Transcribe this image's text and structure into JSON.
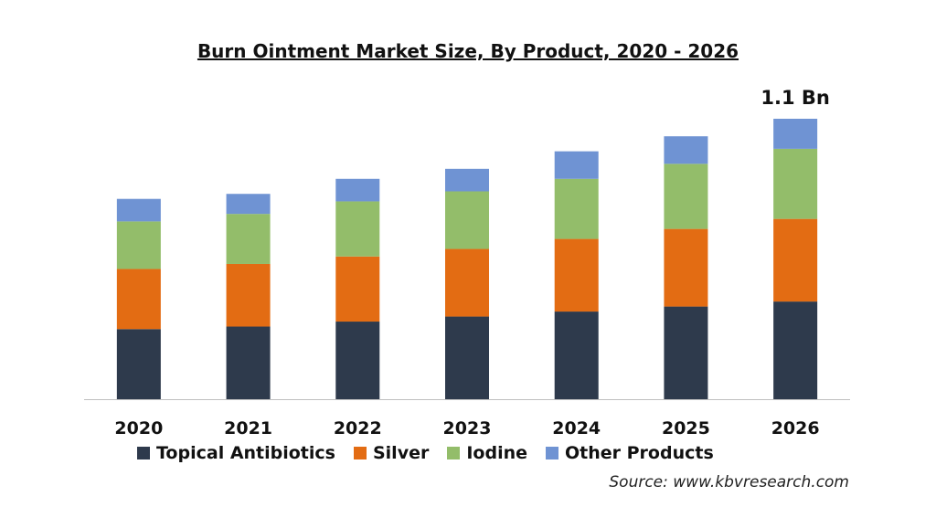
{
  "chart_data": {
    "type": "bar",
    "stacked": true,
    "title": "Burn Ointment Market Size, By Product, 2020 - 2026",
    "categories": [
      "2020",
      "2021",
      "2022",
      "2023",
      "2024",
      "2025",
      "2026"
    ],
    "series": [
      {
        "name": "Topical Antibiotics",
        "color": "#2e3a4c",
        "values": [
          0.28,
          0.29,
          0.31,
          0.33,
          0.35,
          0.37,
          0.39
        ]
      },
      {
        "name": "Silver",
        "color": "#e36c13",
        "values": [
          0.24,
          0.25,
          0.26,
          0.27,
          0.29,
          0.31,
          0.33
        ]
      },
      {
        "name": "Iodine",
        "color": "#93bd6a",
        "values": [
          0.19,
          0.2,
          0.22,
          0.23,
          0.24,
          0.26,
          0.28
        ]
      },
      {
        "name": "Other Products",
        "color": "#6f93d3",
        "values": [
          0.09,
          0.08,
          0.09,
          0.09,
          0.11,
          0.11,
          0.12
        ]
      }
    ],
    "annotations": [
      {
        "category": "2026",
        "text": "1.1 Bn"
      }
    ],
    "ylim": [
      0,
      1.12
    ],
    "grid": false,
    "legend_position": "bottom"
  },
  "source": "Source: www.kbvresearch.com"
}
